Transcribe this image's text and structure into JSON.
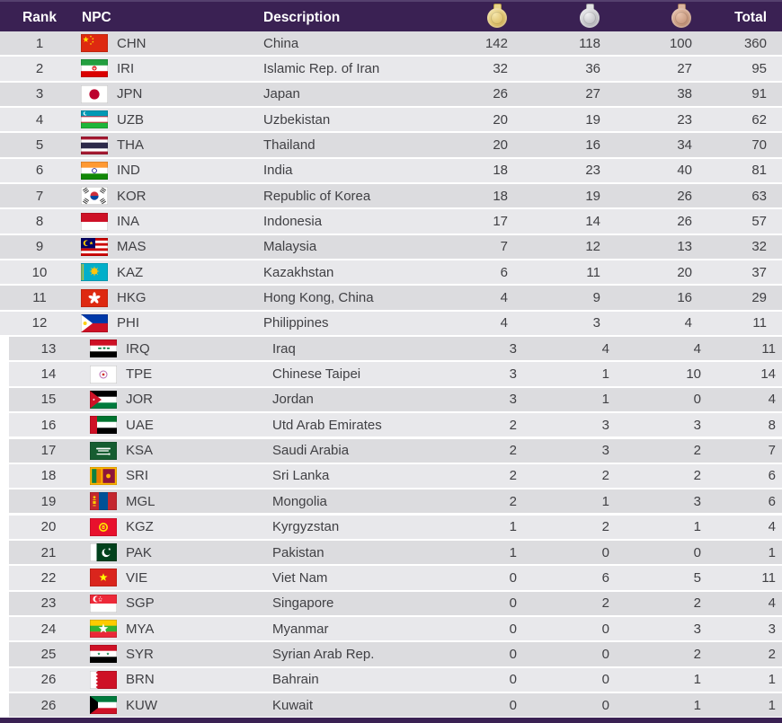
{
  "header": {
    "rank": "Rank",
    "npc": "NPC",
    "description": "Description",
    "gold_icon": "gold-medal-icon",
    "silver_icon": "silver-medal-icon",
    "bronze_icon": "bronze-medal-icon",
    "total": "Total"
  },
  "colors": {
    "header_bg": "#3a2153",
    "header_text": "#ffffff",
    "row_odd": "#dcdcdf",
    "row_even": "#e8e8eb",
    "row_text": "#404044",
    "gold": "#ddc06a",
    "silver": "#c3c3c7",
    "bronze": "#c99a7f"
  },
  "rows": [
    {
      "rank": "1",
      "npc": "CHN",
      "description": "China",
      "gold": "142",
      "silver": "118",
      "bronze": "100",
      "total": "360"
    },
    {
      "rank": "2",
      "npc": "IRI",
      "description": "Islamic Rep. of Iran",
      "gold": "32",
      "silver": "36",
      "bronze": "27",
      "total": "95"
    },
    {
      "rank": "3",
      "npc": "JPN",
      "description": "Japan",
      "gold": "26",
      "silver": "27",
      "bronze": "38",
      "total": "91"
    },
    {
      "rank": "4",
      "npc": "UZB",
      "description": "Uzbekistan",
      "gold": "20",
      "silver": "19",
      "bronze": "23",
      "total": "62"
    },
    {
      "rank": "5",
      "npc": "THA",
      "description": "Thailand",
      "gold": "20",
      "silver": "16",
      "bronze": "34",
      "total": "70"
    },
    {
      "rank": "6",
      "npc": "IND",
      "description": "India",
      "gold": "18",
      "silver": "23",
      "bronze": "40",
      "total": "81"
    },
    {
      "rank": "7",
      "npc": "KOR",
      "description": "Republic of Korea",
      "gold": "18",
      "silver": "19",
      "bronze": "26",
      "total": "63"
    },
    {
      "rank": "8",
      "npc": "INA",
      "description": "Indonesia",
      "gold": "17",
      "silver": "14",
      "bronze": "26",
      "total": "57"
    },
    {
      "rank": "9",
      "npc": "MAS",
      "description": "Malaysia",
      "gold": "7",
      "silver": "12",
      "bronze": "13",
      "total": "32"
    },
    {
      "rank": "10",
      "npc": "KAZ",
      "description": "Kazakhstan",
      "gold": "6",
      "silver": "11",
      "bronze": "20",
      "total": "37"
    },
    {
      "rank": "11",
      "npc": "HKG",
      "description": "Hong Kong, China",
      "gold": "4",
      "silver": "9",
      "bronze": "16",
      "total": "29"
    },
    {
      "rank": "12",
      "npc": "PHI",
      "description": "Philippines",
      "gold": "4",
      "silver": "3",
      "bronze": "4",
      "total": "11"
    },
    {
      "rank": "13",
      "npc": "IRQ",
      "description": "Iraq",
      "gold": "3",
      "silver": "4",
      "bronze": "4",
      "total": "11"
    },
    {
      "rank": "14",
      "npc": "TPE",
      "description": "Chinese Taipei",
      "gold": "3",
      "silver": "1",
      "bronze": "10",
      "total": "14"
    },
    {
      "rank": "15",
      "npc": "JOR",
      "description": "Jordan",
      "gold": "3",
      "silver": "1",
      "bronze": "0",
      "total": "4"
    },
    {
      "rank": "16",
      "npc": "UAE",
      "description": "Utd Arab Emirates",
      "gold": "2",
      "silver": "3",
      "bronze": "3",
      "total": "8"
    },
    {
      "rank": "17",
      "npc": "KSA",
      "description": "Saudi Arabia",
      "gold": "2",
      "silver": "3",
      "bronze": "2",
      "total": "7"
    },
    {
      "rank": "18",
      "npc": "SRI",
      "description": "Sri Lanka",
      "gold": "2",
      "silver": "2",
      "bronze": "2",
      "total": "6"
    },
    {
      "rank": "19",
      "npc": "MGL",
      "description": "Mongolia",
      "gold": "2",
      "silver": "1",
      "bronze": "3",
      "total": "6"
    },
    {
      "rank": "20",
      "npc": "KGZ",
      "description": "Kyrgyzstan",
      "gold": "1",
      "silver": "2",
      "bronze": "1",
      "total": "4"
    },
    {
      "rank": "21",
      "npc": "PAK",
      "description": "Pakistan",
      "gold": "1",
      "silver": "0",
      "bronze": "0",
      "total": "1"
    },
    {
      "rank": "22",
      "npc": "VIE",
      "description": "Viet Nam",
      "gold": "0",
      "silver": "6",
      "bronze": "5",
      "total": "11"
    },
    {
      "rank": "23",
      "npc": "SGP",
      "description": "Singapore",
      "gold": "0",
      "silver": "2",
      "bronze": "2",
      "total": "4"
    },
    {
      "rank": "24",
      "npc": "MYA",
      "description": "Myanmar",
      "gold": "0",
      "silver": "0",
      "bronze": "3",
      "total": "3"
    },
    {
      "rank": "25",
      "npc": "SYR",
      "description": "Syrian Arab Rep.",
      "gold": "0",
      "silver": "0",
      "bronze": "2",
      "total": "2"
    },
    {
      "rank": "26",
      "npc": "BRN",
      "description": "Bahrain",
      "gold": "0",
      "silver": "0",
      "bronze": "1",
      "total": "1"
    },
    {
      "rank": "26",
      "npc": "KUW",
      "description": "Kuwait",
      "gold": "0",
      "silver": "0",
      "bronze": "1",
      "total": "1"
    }
  ]
}
